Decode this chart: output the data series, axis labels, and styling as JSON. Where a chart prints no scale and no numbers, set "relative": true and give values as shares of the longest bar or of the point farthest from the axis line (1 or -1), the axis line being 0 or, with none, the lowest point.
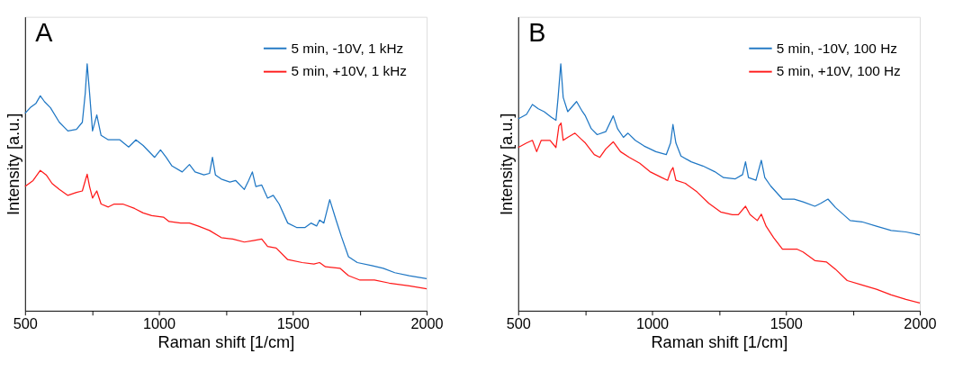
{
  "chart_data": [
    {
      "type": "line",
      "title": "A",
      "xlabel": "Raman shift [1/cm]",
      "ylabel": "Intensity [a.u.]",
      "relative": true,
      "legend": "top right",
      "grid": false,
      "line_style": "solid",
      "xlim": [
        500,
        2000
      ],
      "xticks": [
        500,
        {
          "value": 750,
          "label": null
        },
        1000,
        {
          "value": 1250,
          "label": null
        },
        1500,
        {
          "value": 1750,
          "label": null
        },
        2000
      ],
      "series": [
        {
          "name": "5 min, -10V, 1 kHz",
          "color": "#1f77c4",
          "x": [
            500,
            519,
            541,
            557,
            573,
            595,
            628,
            660,
            692,
            714,
            725,
            732,
            741,
            752,
            768,
            784,
            811,
            854,
            887,
            914,
            941,
            984,
            1006,
            1027,
            1049,
            1087,
            1114,
            1135,
            1168,
            1189,
            1200,
            1211,
            1233,
            1265,
            1287,
            1319,
            1335,
            1349,
            1362,
            1384,
            1406,
            1427,
            1449,
            1481,
            1514,
            1546,
            1568,
            1589,
            1600,
            1616,
            1638,
            1660,
            1681,
            1708,
            1741,
            1795,
            1838,
            1881,
            1935,
            2000
          ],
          "values": [
            0.799,
            0.822,
            0.84,
            0.87,
            0.846,
            0.822,
            0.763,
            0.728,
            0.734,
            0.763,
            0.882,
            1,
            0.882,
            0.728,
            0.793,
            0.71,
            0.692,
            0.692,
            0.663,
            0.692,
            0.669,
            0.621,
            0.651,
            0.621,
            0.586,
            0.562,
            0.592,
            0.562,
            0.55,
            0.556,
            0.621,
            0.55,
            0.533,
            0.521,
            0.527,
            0.491,
            0.527,
            0.562,
            0.503,
            0.509,
            0.456,
            0.467,
            0.432,
            0.355,
            0.337,
            0.337,
            0.355,
            0.343,
            0.367,
            0.355,
            0.45,
            0.373,
            0.302,
            0.219,
            0.195,
            0.183,
            0.172,
            0.154,
            0.142,
            0.13
          ]
        },
        {
          "name": "5 min, +10V, 1 kHz",
          "color": "#ff1a1a",
          "x": [
            500,
            530,
            557,
            579,
            601,
            628,
            660,
            692,
            714,
            725,
            732,
            741,
            752,
            768,
            784,
            811,
            833,
            865,
            909,
            941,
            973,
            1017,
            1038,
            1081,
            1114,
            1146,
            1189,
            1233,
            1276,
            1319,
            1352,
            1384,
            1406,
            1438,
            1481,
            1535,
            1579,
            1600,
            1622,
            1676,
            1708,
            1751,
            1805,
            1860,
            1935,
            2000
          ],
          "values": [
            0.503,
            0.527,
            0.568,
            0.55,
            0.515,
            0.491,
            0.467,
            0.479,
            0.485,
            0.527,
            0.553,
            0.503,
            0.456,
            0.485,
            0.432,
            0.42,
            0.432,
            0.432,
            0.414,
            0.396,
            0.385,
            0.379,
            0.361,
            0.355,
            0.355,
            0.343,
            0.325,
            0.296,
            0.29,
            0.278,
            0.284,
            0.29,
            0.26,
            0.254,
            0.207,
            0.195,
            0.189,
            0.195,
            0.178,
            0.172,
            0.142,
            0.124,
            0.124,
            0.112,
            0.101,
            0.089
          ]
        }
      ]
    },
    {
      "type": "line",
      "title": "B",
      "xlabel": "Raman shift [1/cm]",
      "ylabel": "Intensity [a.u.]",
      "relative": true,
      "legend": "top right",
      "grid": false,
      "line_style": "solid",
      "xlim": [
        500,
        2000
      ],
      "xticks": [
        500,
        {
          "value": 750,
          "label": null
        },
        1000,
        {
          "value": 1250,
          "label": null
        },
        1500,
        {
          "value": 1750,
          "label": null
        },
        2000
      ],
      "series": [
        {
          "name": "5 min, -10V, 100 Hz",
          "color": "#1f77c4",
          "x": [
            500,
            531,
            553,
            575,
            597,
            624,
            641,
            649,
            659,
            668,
            685,
            718,
            740,
            751,
            773,
            795,
            827,
            855,
            871,
            893,
            910,
            937,
            970,
            1014,
            1053,
            1069,
            1078,
            1089,
            1108,
            1146,
            1190,
            1234,
            1267,
            1311,
            1338,
            1349,
            1360,
            1388,
            1408,
            1421,
            1443,
            1487,
            1531,
            1564,
            1608,
            1630,
            1657,
            1685,
            1740,
            1784,
            1838,
            1893,
            1948,
            2000
          ],
          "values": [
            0.777,
            0.795,
            0.835,
            0.818,
            0.806,
            0.783,
            0.771,
            0.864,
            1,
            0.864,
            0.806,
            0.847,
            0.806,
            0.789,
            0.737,
            0.713,
            0.725,
            0.789,
            0.737,
            0.702,
            0.719,
            0.69,
            0.667,
            0.644,
            0.632,
            0.679,
            0.754,
            0.679,
            0.626,
            0.603,
            0.586,
            0.563,
            0.539,
            0.534,
            0.551,
            0.603,
            0.539,
            0.528,
            0.609,
            0.539,
            0.505,
            0.452,
            0.452,
            0.441,
            0.423,
            0.435,
            0.452,
            0.418,
            0.365,
            0.36,
            0.342,
            0.325,
            0.319,
            0.307
          ]
        },
        {
          "name": "5 min, +10V, 100 Hz",
          "color": "#ff1a1a",
          "x": [
            500,
            531,
            553,
            569,
            586,
            619,
            641,
            652,
            660,
            668,
            685,
            712,
            734,
            751,
            784,
            805,
            827,
            855,
            882,
            915,
            954,
            992,
            1036,
            1058,
            1069,
            1078,
            1089,
            1124,
            1168,
            1212,
            1256,
            1300,
            1322,
            1349,
            1366,
            1393,
            1408,
            1426,
            1454,
            1487,
            1542,
            1564,
            1608,
            1652,
            1685,
            1729,
            1784,
            1838,
            1893,
            1948,
            2000
          ],
          "values": [
            0.661,
            0.679,
            0.69,
            0.644,
            0.69,
            0.69,
            0.661,
            0.748,
            0.76,
            0.69,
            0.702,
            0.719,
            0.696,
            0.679,
            0.632,
            0.621,
            0.655,
            0.684,
            0.644,
            0.621,
            0.597,
            0.563,
            0.539,
            0.528,
            0.563,
            0.58,
            0.528,
            0.516,
            0.481,
            0.435,
            0.4,
            0.389,
            0.389,
            0.423,
            0.389,
            0.365,
            0.391,
            0.342,
            0.296,
            0.249,
            0.249,
            0.238,
            0.203,
            0.197,
            0.168,
            0.122,
            0.104,
            0.087,
            0.064,
            0.046,
            0.031
          ]
        }
      ]
    }
  ]
}
